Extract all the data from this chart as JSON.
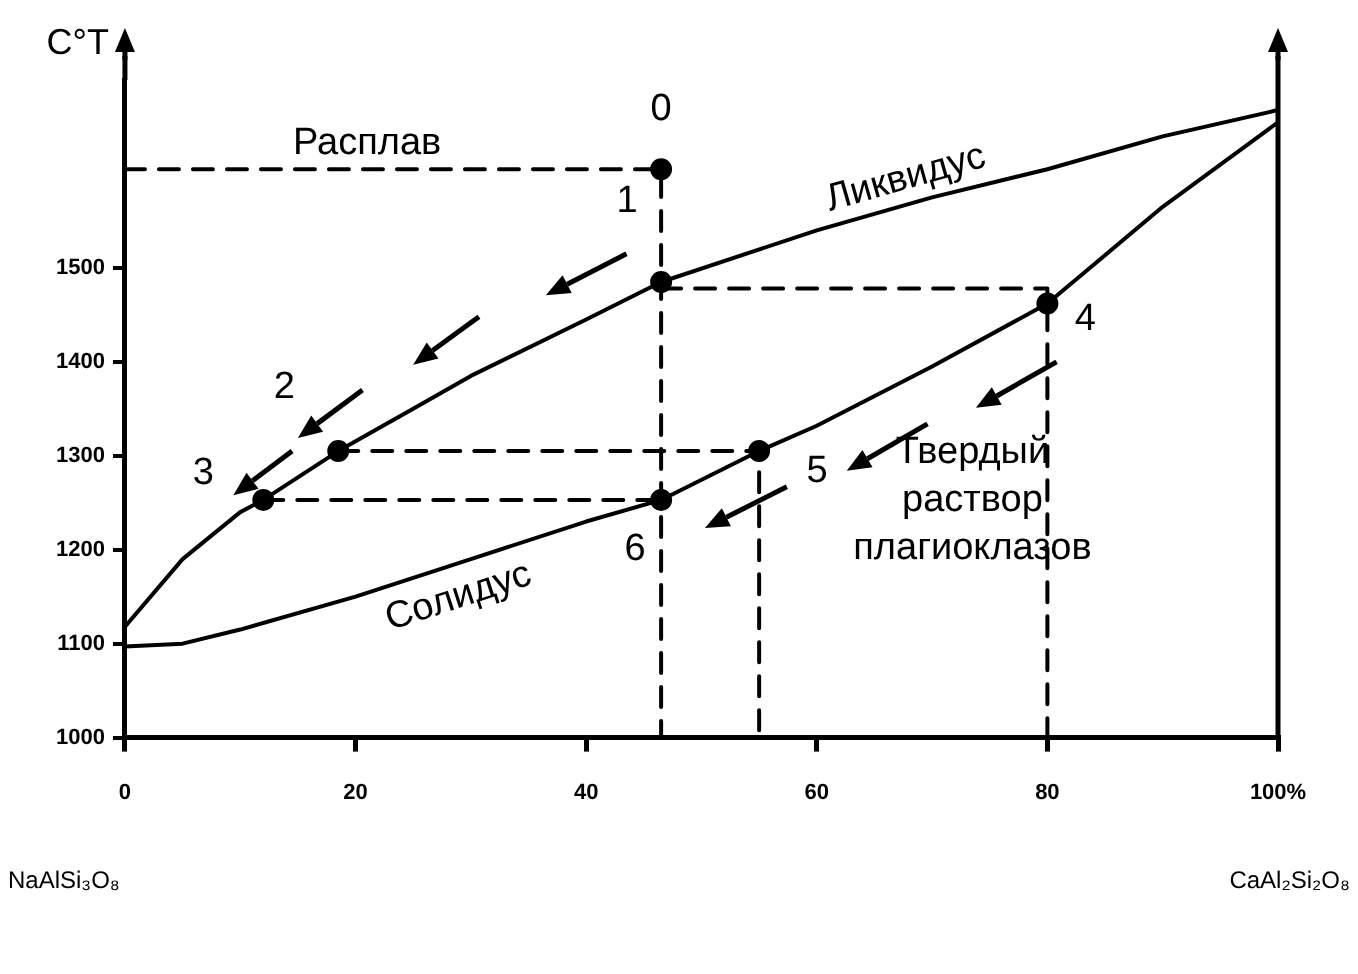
{
  "chart_data": {
    "type": "line",
    "ylabel": "C°T",
    "xlim": [
      0,
      100
    ],
    "ylim": [
      1000,
      1700
    ],
    "xticks": [
      0,
      20,
      40,
      60,
      80,
      {
        "value": 100,
        "label": "100%"
      }
    ],
    "yticks": [
      1000,
      1100,
      1200,
      1300,
      1400,
      1500
    ],
    "series": [
      {
        "name": "Ликвидус",
        "color": "#000000",
        "line_style": "solid",
        "marker": "none",
        "x": [
          0,
          5,
          10,
          12,
          18.5,
          25,
          30,
          40,
          46.5,
          60,
          70,
          80,
          90,
          100
        ],
        "values": [
          1118,
          1190,
          1240,
          1253,
          1305,
          1350,
          1385,
          1445,
          1485,
          1540,
          1575,
          1605,
          1640,
          1668
        ]
      },
      {
        "name": "Солидус",
        "color": "#000000",
        "line_style": "solid",
        "marker": "none",
        "x": [
          0,
          5,
          10,
          20,
          30,
          40,
          46.5,
          55,
          60,
          70,
          80,
          90,
          100
        ],
        "values": [
          1097,
          1100,
          1115,
          1150,
          1190,
          1230,
          1253,
          1305,
          1332,
          1395,
          1462,
          1565,
          1655
        ]
      },
      {
        "color": "#000000",
        "line_style": "dashed",
        "marker": "none",
        "x": [
          0,
          46.5,
          46.5
        ],
        "values": [
          1605,
          1605,
          1000
        ]
      },
      {
        "color": "#000000",
        "line_style": "dashed",
        "marker": "none",
        "x": [
          46.5,
          80,
          80
        ],
        "values": [
          1478,
          1478,
          1000
        ]
      },
      {
        "color": "#000000",
        "line_style": "dashed",
        "marker": "none",
        "x": [
          18.5,
          55,
          55
        ],
        "values": [
          1305,
          1305,
          1000
        ]
      },
      {
        "color": "#000000",
        "line_style": "dashed",
        "marker": "none",
        "x": [
          12,
          46.5
        ],
        "values": [
          1253,
          1253
        ]
      },
      {
        "type": "scatter",
        "color": "#000000",
        "marker": "circle",
        "x": [
          46.5,
          46.5,
          18.5,
          12,
          80,
          55,
          46.5
        ],
        "values": [
          1605,
          1485,
          1305,
          1253,
          1462,
          1305,
          1253
        ]
      }
    ],
    "annotations": [
      "Расплав",
      "Твердый раствор плагиоклазов",
      {
        "text": "0",
        "x": 46.5,
        "y": 1605
      },
      {
        "text": "1",
        "x": 46.5,
        "y": 1485
      },
      {
        "text": "2",
        "x": 18.5,
        "y": 1305
      },
      {
        "text": "3",
        "x": 12,
        "y": 1253
      },
      {
        "text": "4",
        "x": 80,
        "y": 1462
      },
      {
        "text": "5",
        "x": 55,
        "y": 1305
      },
      {
        "text": "6",
        "x": 46.5,
        "y": 1253
      },
      "NaAlSi₃O₈",
      "CaAl₂Si₂O₈"
    ]
  }
}
